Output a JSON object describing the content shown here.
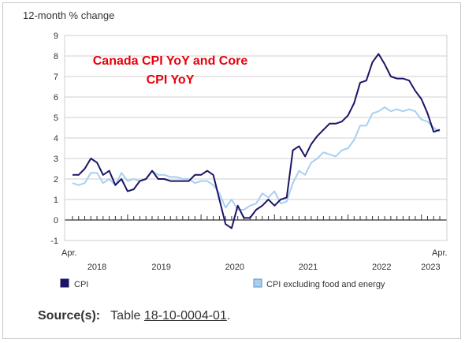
{
  "chart_data": {
    "type": "line",
    "unit_label": "12-month % change",
    "annotation": [
      "Canada CPI YoY and Core",
      "CPI YoY"
    ],
    "annotation_color": "#e8000b",
    "ylim": [
      -1,
      9
    ],
    "yticks": [
      "9",
      "8",
      "7",
      "6",
      "5",
      "4",
      "3",
      "2",
      "1",
      "0",
      "-1"
    ],
    "x_start": "2018-04",
    "x_end": "2023-04",
    "x_edge_labels": {
      "start": "Apr.",
      "end": "Apr."
    },
    "year_labels": [
      "2018",
      "2019",
      "2020",
      "2021",
      "2022",
      "2023"
    ],
    "grid": true,
    "legend_position": "bottom",
    "series": [
      {
        "name": "CPI",
        "color": "#1b1464",
        "values": [
          2.2,
          2.2,
          2.5,
          3.0,
          2.8,
          2.2,
          2.4,
          1.7,
          2.0,
          1.4,
          1.5,
          1.9,
          2.0,
          2.4,
          2.0,
          2.0,
          1.9,
          1.9,
          1.9,
          1.9,
          2.2,
          2.2,
          2.4,
          2.2,
          1.0,
          -0.2,
          -0.4,
          0.7,
          0.1,
          0.1,
          0.5,
          0.7,
          1.0,
          0.7,
          1.0,
          1.1,
          3.4,
          3.6,
          3.1,
          3.7,
          4.1,
          4.4,
          4.7,
          4.7,
          4.8,
          5.1,
          5.7,
          6.7,
          6.8,
          7.7,
          8.1,
          7.6,
          7.0,
          6.9,
          6.9,
          6.8,
          6.3,
          5.9,
          5.2,
          4.3,
          4.4
        ],
        "marker": "dark-square"
      },
      {
        "name": "CPI excluding food and energy",
        "color": "#a9cff0",
        "values": [
          1.8,
          1.7,
          1.8,
          2.3,
          2.3,
          1.8,
          2.0,
          1.7,
          2.3,
          1.9,
          2.0,
          1.9,
          2.0,
          2.4,
          2.2,
          2.2,
          2.1,
          2.1,
          2.0,
          2.0,
          1.8,
          1.9,
          1.9,
          1.7,
          1.3,
          0.6,
          1.0,
          0.5,
          0.5,
          0.7,
          0.8,
          1.3,
          1.1,
          1.4,
          0.8,
          0.9,
          1.8,
          2.4,
          2.2,
          2.8,
          3.0,
          3.3,
          3.2,
          3.1,
          3.4,
          3.5,
          3.9,
          4.6,
          4.6,
          5.2,
          5.3,
          5.5,
          5.3,
          5.4,
          5.3,
          5.4,
          5.3,
          4.9,
          4.8,
          4.5,
          4.3
        ],
        "marker": "light-square"
      }
    ]
  },
  "source": {
    "label": "Source(s):",
    "prefix": "Table",
    "table_id": "18-10-0004-01",
    "suffix": "."
  },
  "colors": {
    "grid": "#cfcfcf",
    "axis": "#333333",
    "text": "#333333"
  }
}
